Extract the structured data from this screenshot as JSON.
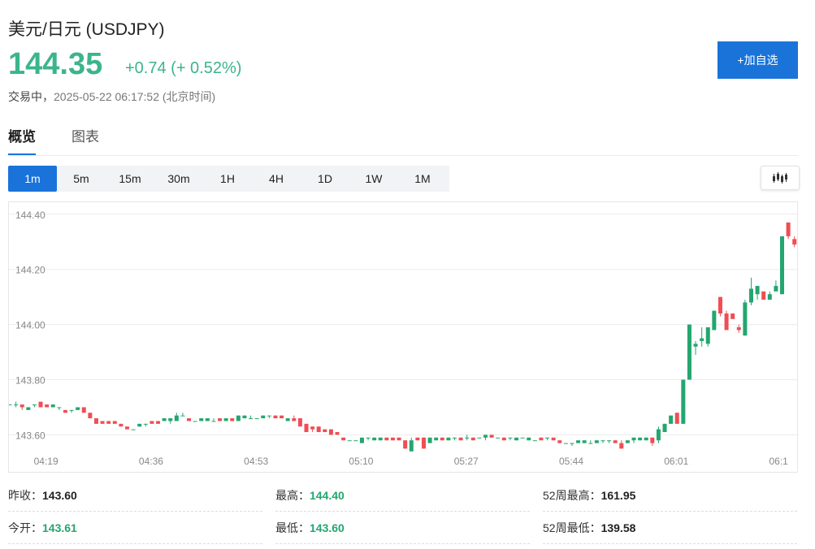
{
  "header": {
    "title": "美元/日元 (USDJPY)",
    "price": "144.35",
    "change": "+0.74 (+ 0.52%)",
    "status": "交易中，",
    "timestamp": "2025-05-22 06:17:52 (北京时间)",
    "watch_button": "+加自选"
  },
  "tabs": [
    {
      "label": "概览",
      "active": true
    },
    {
      "label": "图表",
      "active": false
    }
  ],
  "intervals": [
    "1m",
    "5m",
    "15m",
    "30m",
    "1H",
    "4H",
    "1D",
    "1W",
    "1M"
  ],
  "active_interval": "1m",
  "chart_type_icon": "candlestick-icon",
  "colors": {
    "up": "#23a66f",
    "price_up": "#3bb58a",
    "down": "#ef4e54",
    "accent": "#1a73d9",
    "grid": "#ececec",
    "axis_text": "#888888"
  },
  "chart_data": {
    "type": "candlestick",
    "title": "",
    "xlabel": "",
    "ylabel": "",
    "ylim": [
      143.56,
      144.42
    ],
    "yticks": [
      "144.40",
      "144.20",
      "144.00",
      "143.80",
      "143.60"
    ],
    "ytick_values": [
      144.4,
      144.2,
      144.0,
      143.8,
      143.6
    ],
    "xticks": [
      "04:19",
      "04:36",
      "04:53",
      "05:10",
      "05:27",
      "05:44",
      "06:01",
      "06:1"
    ],
    "xtick_index": [
      6,
      23,
      40,
      57,
      74,
      91,
      108,
      125
    ],
    "grid": true,
    "candles": [
      [
        143.71,
        143.71,
        143.71,
        143.71
      ],
      [
        143.71,
        143.72,
        143.7,
        143.71
      ],
      [
        143.71,
        143.71,
        143.69,
        143.7
      ],
      [
        143.69,
        143.7,
        143.69,
        143.7
      ],
      [
        143.71,
        143.71,
        143.7,
        143.71
      ],
      [
        143.72,
        143.72,
        143.7,
        143.7
      ],
      [
        143.71,
        143.71,
        143.7,
        143.7
      ],
      [
        143.7,
        143.71,
        143.7,
        143.71
      ],
      [
        143.7,
        143.7,
        143.69,
        143.7
      ],
      [
        143.69,
        143.69,
        143.68,
        143.68
      ],
      [
        143.69,
        143.69,
        143.68,
        143.69
      ],
      [
        143.69,
        143.7,
        143.69,
        143.7
      ],
      [
        143.7,
        143.7,
        143.68,
        143.68
      ],
      [
        143.68,
        143.68,
        143.66,
        143.66
      ],
      [
        143.66,
        143.66,
        143.64,
        143.64
      ],
      [
        143.65,
        143.65,
        143.64,
        143.64
      ],
      [
        143.65,
        143.65,
        143.64,
        143.64
      ],
      [
        143.65,
        143.65,
        143.64,
        143.64
      ],
      [
        143.64,
        143.64,
        143.63,
        143.63
      ],
      [
        143.63,
        143.63,
        143.62,
        143.62
      ],
      [
        143.62,
        143.62,
        143.62,
        143.62
      ],
      [
        143.63,
        143.64,
        143.63,
        143.64
      ],
      [
        143.64,
        143.64,
        143.63,
        143.64
      ],
      [
        143.65,
        143.65,
        143.64,
        143.64
      ],
      [
        143.65,
        143.65,
        143.64,
        143.64
      ],
      [
        143.65,
        143.66,
        143.65,
        143.66
      ],
      [
        143.65,
        143.66,
        143.64,
        143.66
      ],
      [
        143.65,
        143.68,
        143.65,
        143.67
      ],
      [
        143.67,
        143.68,
        143.67,
        143.67
      ],
      [
        143.66,
        143.66,
        143.65,
        143.65
      ],
      [
        143.65,
        143.65,
        143.65,
        143.65
      ],
      [
        143.65,
        143.66,
        143.65,
        143.66
      ],
      [
        143.65,
        143.66,
        143.65,
        143.66
      ],
      [
        143.65,
        143.66,
        143.65,
        143.65
      ],
      [
        143.66,
        143.66,
        143.65,
        143.65
      ],
      [
        143.65,
        143.66,
        143.65,
        143.66
      ],
      [
        143.66,
        143.66,
        143.65,
        143.65
      ],
      [
        143.65,
        143.67,
        143.65,
        143.67
      ],
      [
        143.66,
        143.67,
        143.66,
        143.67
      ],
      [
        143.66,
        143.67,
        143.66,
        143.66
      ],
      [
        143.66,
        143.66,
        143.66,
        143.66
      ],
      [
        143.66,
        143.67,
        143.66,
        143.67
      ],
      [
        143.67,
        143.67,
        143.66,
        143.67
      ],
      [
        143.67,
        143.67,
        143.66,
        143.66
      ],
      [
        143.67,
        143.67,
        143.66,
        143.66
      ],
      [
        143.65,
        143.66,
        143.65,
        143.66
      ],
      [
        143.66,
        143.67,
        143.65,
        143.65
      ],
      [
        143.66,
        143.66,
        143.63,
        143.63
      ],
      [
        143.64,
        143.64,
        143.61,
        143.61
      ],
      [
        143.63,
        143.63,
        143.61,
        143.62
      ],
      [
        143.63,
        143.63,
        143.61,
        143.61
      ],
      [
        143.62,
        143.62,
        143.61,
        143.61
      ],
      [
        143.62,
        143.62,
        143.6,
        143.6
      ],
      [
        143.61,
        143.61,
        143.6,
        143.6
      ],
      [
        143.59,
        143.59,
        143.58,
        143.58
      ],
      [
        143.58,
        143.58,
        143.58,
        143.58
      ],
      [
        143.58,
        143.58,
        143.58,
        143.58
      ],
      [
        143.57,
        143.59,
        143.57,
        143.59
      ],
      [
        143.59,
        143.59,
        143.58,
        143.59
      ],
      [
        143.58,
        143.59,
        143.58,
        143.59
      ],
      [
        143.58,
        143.59,
        143.58,
        143.59
      ],
      [
        143.59,
        143.59,
        143.58,
        143.58
      ],
      [
        143.59,
        143.59,
        143.58,
        143.58
      ],
      [
        143.59,
        143.59,
        143.58,
        143.58
      ],
      [
        143.58,
        143.58,
        143.55,
        143.55
      ],
      [
        143.54,
        143.59,
        143.54,
        143.58
      ],
      [
        143.59,
        143.59,
        143.58,
        143.58
      ],
      [
        143.59,
        143.59,
        143.55,
        143.55
      ],
      [
        143.57,
        143.59,
        143.57,
        143.59
      ],
      [
        143.58,
        143.59,
        143.58,
        143.59
      ],
      [
        143.59,
        143.59,
        143.58,
        143.58
      ],
      [
        143.58,
        143.59,
        143.58,
        143.59
      ],
      [
        143.59,
        143.59,
        143.58,
        143.59
      ],
      [
        143.59,
        143.59,
        143.58,
        143.58
      ],
      [
        143.59,
        143.6,
        143.58,
        143.59
      ],
      [
        143.59,
        143.59,
        143.58,
        143.58
      ],
      [
        143.59,
        143.59,
        143.59,
        143.59
      ],
      [
        143.59,
        143.6,
        143.58,
        143.6
      ],
      [
        143.6,
        143.6,
        143.59,
        143.59
      ],
      [
        143.59,
        143.59,
        143.59,
        143.59
      ],
      [
        143.59,
        143.59,
        143.58,
        143.58
      ],
      [
        143.59,
        143.59,
        143.58,
        143.59
      ],
      [
        143.58,
        143.59,
        143.58,
        143.59
      ],
      [
        143.59,
        143.59,
        143.59,
        143.59
      ],
      [
        143.58,
        143.59,
        143.58,
        143.59
      ],
      [
        143.58,
        143.58,
        143.58,
        143.58
      ],
      [
        143.59,
        143.59,
        143.58,
        143.58
      ],
      [
        143.59,
        143.59,
        143.58,
        143.59
      ],
      [
        143.59,
        143.59,
        143.58,
        143.58
      ],
      [
        143.58,
        143.58,
        143.57,
        143.57
      ],
      [
        143.57,
        143.57,
        143.57,
        143.57
      ],
      [
        143.57,
        143.57,
        143.56,
        143.57
      ],
      [
        143.57,
        143.58,
        143.57,
        143.58
      ],
      [
        143.57,
        143.58,
        143.57,
        143.58
      ],
      [
        143.57,
        143.58,
        143.57,
        143.57
      ],
      [
        143.57,
        143.58,
        143.57,
        143.58
      ],
      [
        143.58,
        143.58,
        143.57,
        143.58
      ],
      [
        143.58,
        143.58,
        143.57,
        143.58
      ],
      [
        143.58,
        143.58,
        143.57,
        143.57
      ],
      [
        143.57,
        143.58,
        143.55,
        143.55
      ],
      [
        143.57,
        143.58,
        143.57,
        143.58
      ],
      [
        143.58,
        143.59,
        143.57,
        143.59
      ],
      [
        143.58,
        143.59,
        143.58,
        143.59
      ],
      [
        143.58,
        143.59,
        143.58,
        143.59
      ],
      [
        143.59,
        143.59,
        143.56,
        143.57
      ],
      [
        143.58,
        143.63,
        143.57,
        143.62
      ],
      [
        143.61,
        143.64,
        143.61,
        143.64
      ],
      [
        143.64,
        143.67,
        143.64,
        143.67
      ],
      [
        143.68,
        143.68,
        143.64,
        143.64
      ],
      [
        143.64,
        143.8,
        143.64,
        143.8
      ],
      [
        143.8,
        144.0,
        143.8,
        144.0
      ],
      [
        143.92,
        143.94,
        143.89,
        143.93
      ],
      [
        143.94,
        143.99,
        143.92,
        143.95
      ],
      [
        143.93,
        143.99,
        143.92,
        143.99
      ],
      [
        143.98,
        144.05,
        143.98,
        144.05
      ],
      [
        144.1,
        144.1,
        144.03,
        144.04
      ],
      [
        144.04,
        144.05,
        143.98,
        143.98
      ],
      [
        144.04,
        144.04,
        144.02,
        144.02
      ],
      [
        143.99,
        144.0,
        143.97,
        143.98
      ],
      [
        143.96,
        144.09,
        143.96,
        144.08
      ],
      [
        144.08,
        144.17,
        144.07,
        144.13
      ],
      [
        144.11,
        144.14,
        144.09,
        144.14
      ],
      [
        144.12,
        144.12,
        144.09,
        144.09
      ],
      [
        144.09,
        144.12,
        144.09,
        144.11
      ],
      [
        144.12,
        144.16,
        144.12,
        144.14
      ],
      [
        144.11,
        144.32,
        144.11,
        144.32
      ],
      [
        144.37,
        144.37,
        144.31,
        144.32
      ],
      [
        144.31,
        144.32,
        144.28,
        144.29
      ]
    ]
  },
  "stats": [
    [
      {
        "label": "昨收：",
        "value": "143.60",
        "color": "default"
      },
      {
        "label": "最高：",
        "value": "144.40",
        "color": "green"
      },
      {
        "label": "52周最高：",
        "value": "161.95",
        "color": "default"
      }
    ],
    [
      {
        "label": "今开：",
        "value": "143.61",
        "color": "green"
      },
      {
        "label": "最低：",
        "value": "143.60",
        "color": "green"
      },
      {
        "label": "52周最低：",
        "value": "139.58",
        "color": "default"
      }
    ]
  ]
}
